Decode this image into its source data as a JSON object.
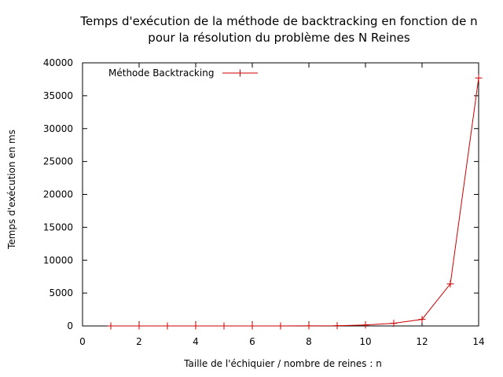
{
  "chart_data": {
    "type": "line",
    "title": "Temps d'exécution de la méthode de backtracking en fonction de n",
    "subtitle": "pour la résolution du problème des N Reines",
    "xlabel": "Taille de l'échiquier / nombre de reines : n",
    "ylabel": "Temps d'exécution en ms",
    "xlim": [
      0,
      14
    ],
    "ylim": [
      0,
      40000
    ],
    "x_ticks": [
      0,
      2,
      4,
      6,
      8,
      10,
      12,
      14
    ],
    "y_ticks": [
      0,
      5000,
      10000,
      15000,
      20000,
      25000,
      30000,
      35000,
      40000
    ],
    "grid": false,
    "legend_position": "top-left",
    "series": [
      {
        "name": "Méthode Backtracking",
        "color": "#cc0000",
        "marker": "plus",
        "x": [
          1,
          2,
          3,
          4,
          5,
          6,
          7,
          8,
          9,
          10,
          11,
          12,
          13,
          14
        ],
        "y": [
          0,
          0,
          0,
          0,
          0,
          1,
          3,
          10,
          40,
          150,
          400,
          1000,
          6400,
          37700
        ]
      }
    ]
  }
}
